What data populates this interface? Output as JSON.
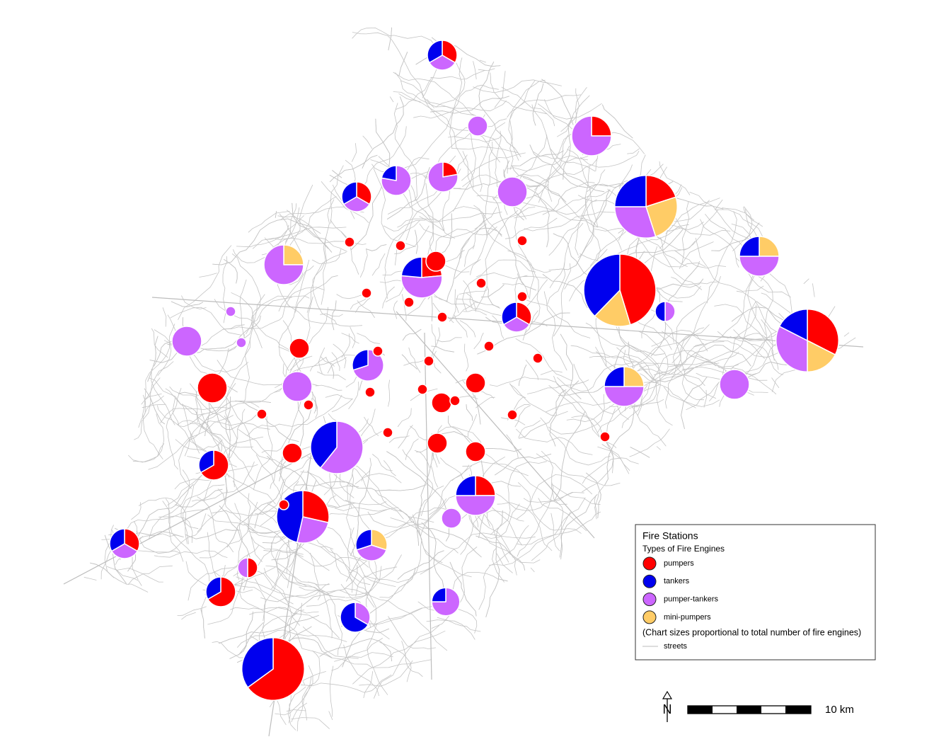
{
  "legend": {
    "title": "Fire Stations",
    "subtitle": "Types of Fire Engines",
    "items": [
      {
        "name": "pumpers",
        "color": "#ff0000"
      },
      {
        "name": "tankers",
        "color": "#0000ee"
      },
      {
        "name": "pumper-tankers",
        "color": "#cc66ff"
      },
      {
        "name": "mini-pumpers",
        "color": "#ffcc66"
      }
    ],
    "note": "(Chart sizes proportional to total number of fire engines)",
    "streets": "streets"
  },
  "scale_bar": {
    "label": "10 km"
  },
  "north_arrow": {
    "label": "N"
  },
  "stations": [
    [
      3,
      3,
      3,
      0
    ],
    [
      0,
      0,
      4,
      0
    ],
    [
      4,
      0,
      12,
      0
    ],
    [
      0,
      2,
      7,
      0
    ],
    [
      2,
      0,
      7,
      0
    ],
    [
      3,
      3,
      3,
      0
    ],
    [
      0,
      0,
      9,
      0
    ],
    [
      8,
      10,
      12,
      10
    ],
    [
      0,
      0,
      12,
      4
    ],
    [
      0,
      4,
      8,
      4
    ],
    [
      4,
      4,
      9,
      0
    ],
    [
      4,
      0,
      0,
      0
    ],
    [
      24,
      20,
      0,
      9
    ],
    [
      0,
      2,
      2,
      0
    ],
    [
      3,
      3,
      3,
      0
    ],
    [
      13,
      7,
      13,
      7
    ],
    [
      0,
      0,
      9,
      0
    ],
    [
      0,
      3,
      7,
      0
    ],
    [
      0,
      4,
      8,
      4
    ],
    [
      0,
      0,
      9,
      0
    ],
    [
      9,
      0,
      0,
      0
    ],
    [
      0,
      0,
      9,
      0
    ],
    [
      0,
      11,
      17,
      0
    ],
    [
      6,
      3,
      0,
      0
    ],
    [
      4,
      4,
      8,
      0
    ],
    [
      8,
      13,
      7,
      0
    ],
    [
      0,
      0,
      4,
      0
    ],
    [
      3,
      3,
      3,
      0
    ],
    [
      0,
      3,
      4,
      3
    ],
    [
      2,
      0,
      2,
      0
    ],
    [
      6,
      3,
      0,
      0
    ],
    [
      0,
      6,
      3,
      0
    ],
    [
      0,
      2,
      6,
      0
    ],
    [
      26,
      14,
      0,
      0
    ],
    [
      4,
      0,
      0,
      0
    ],
    [
      4,
      0,
      0,
      0
    ],
    [
      4,
      0,
      0,
      0
    ],
    [
      4,
      0,
      0,
      0
    ],
    [
      4,
      0,
      0,
      0
    ],
    [
      4,
      0,
      0,
      0
    ],
    [
      1,
      0,
      0,
      0
    ],
    [
      1,
      0,
      0,
      0
    ],
    [
      1,
      0,
      0,
      0
    ],
    [
      1,
      0,
      0,
      0
    ],
    [
      1,
      0,
      0,
      0
    ],
    [
      1,
      0,
      0,
      0
    ],
    [
      1,
      0,
      0,
      0
    ],
    [
      1,
      0,
      0,
      0
    ],
    [
      1,
      0,
      0,
      0
    ],
    [
      1,
      0,
      0,
      0
    ],
    [
      1,
      0,
      0,
      0
    ],
    [
      1,
      0,
      0,
      0
    ],
    [
      1,
      0,
      0,
      0
    ],
    [
      1,
      0,
      0,
      0
    ],
    [
      1,
      0,
      0,
      0
    ],
    [
      1,
      0,
      0,
      0
    ],
    [
      1,
      0,
      0,
      0
    ],
    [
      1,
      0,
      0,
      0
    ],
    [
      1,
      0,
      0,
      0
    ],
    [
      1,
      0,
      0,
      0
    ],
    [
      1,
      0,
      0,
      0
    ],
    [
      0,
      0,
      1,
      0
    ],
    [
      0,
      0,
      1,
      0
    ]
  ]
}
